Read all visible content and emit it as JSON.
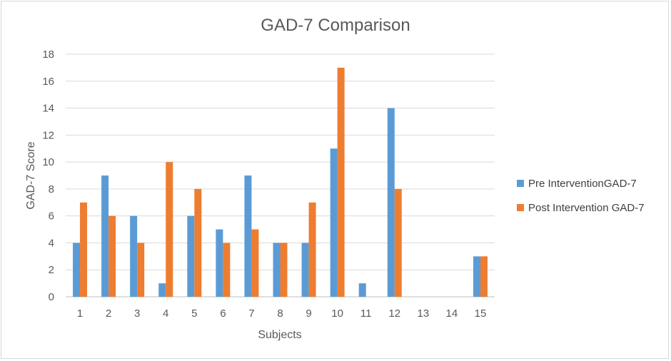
{
  "chart_data": {
    "type": "bar",
    "title": "GAD-7 Comparison",
    "xlabel": "Subjects",
    "ylabel": "GAD-7 Score",
    "ylim": [
      0,
      18
    ],
    "ytick_step": 2,
    "grid": true,
    "legend_position": "right",
    "categories": [
      "1",
      "2",
      "3",
      "4",
      "5",
      "6",
      "7",
      "8",
      "9",
      "10",
      "11",
      "12",
      "13",
      "14",
      "15"
    ],
    "series": [
      {
        "name": "Pre InterventionGAD-7",
        "color": "#5b9bd5",
        "values": [
          4,
          9,
          6,
          1,
          6,
          5,
          9,
          4,
          4,
          11,
          1,
          14,
          0,
          0,
          3
        ]
      },
      {
        "name": "Post Intervention GAD-7",
        "color": "#ed7d31",
        "values": [
          7,
          6,
          4,
          10,
          8,
          4,
          5,
          4,
          7,
          17,
          0,
          8,
          0,
          0,
          3
        ]
      }
    ]
  }
}
